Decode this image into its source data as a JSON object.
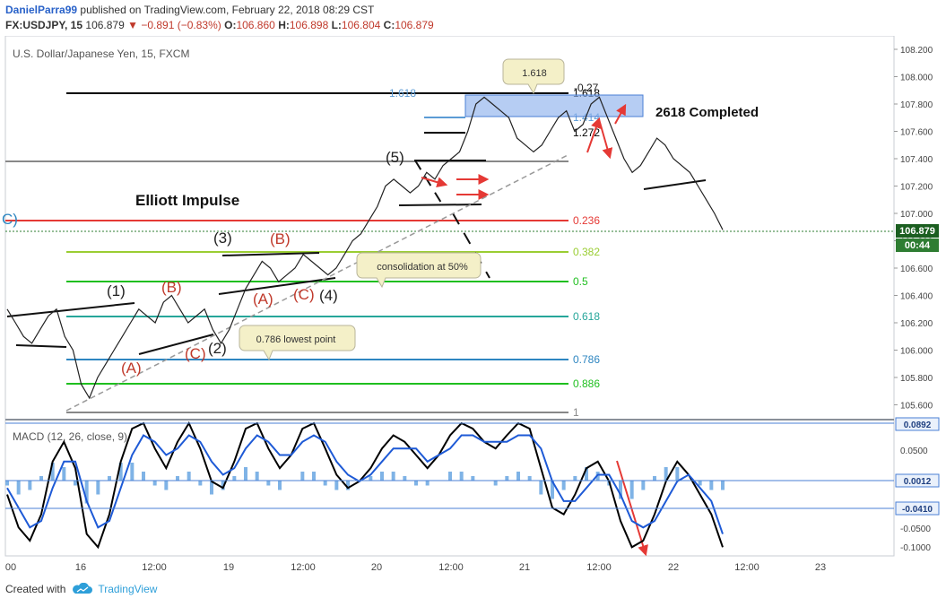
{
  "header": {
    "publisher": "DanielParra99",
    "published_text": "published on TradingView.com, February 22, 2018 08:29 CST",
    "symbol_line": {
      "symbol": "FX:USDJPY, 15",
      "last": "106.879",
      "change": "−0.891 (−0.83%)",
      "o_label": "O:",
      "o": "106.860",
      "h_label": "H:",
      "h": "106.898",
      "l_label": "L:",
      "l": "106.804",
      "c_label": "C:",
      "c": "106.879"
    }
  },
  "chart_data": [
    {
      "type": "line",
      "title": "U.S. Dollar/Japanese Yen, 15, FXCM",
      "price_axis_ticks": [
        "108.200",
        "108.000",
        "107.800",
        "107.600",
        "107.400",
        "107.200",
        "107.000",
        "106.800",
        "106.600",
        "106.400",
        "106.200",
        "106.000",
        "105.800",
        "105.600"
      ],
      "x_tick_labels": [
        "00",
        "16",
        "12:00",
        "19",
        "12:00",
        "20",
        "12:00",
        "21",
        "12:00",
        "22",
        "12:00",
        "23"
      ],
      "last_price_label": "106.879",
      "countdown_label": "00:44",
      "series": [
        {
          "name": "",
          "values": [
            106.3,
            106.2,
            106.1,
            106.05,
            106.15,
            106.25,
            106.3,
            106.1,
            106.0,
            105.75,
            105.65,
            105.8,
            105.9,
            106.0,
            106.1,
            106.2,
            106.3,
            106.25,
            106.2,
            106.35,
            106.4,
            106.3,
            106.2,
            106.25,
            106.3,
            106.15,
            106.05,
            106.15,
            106.3,
            106.45,
            106.55,
            106.65,
            106.6,
            106.5,
            106.55,
            106.6,
            106.7,
            106.65,
            106.6,
            106.55,
            106.6,
            106.7,
            106.8,
            106.85,
            106.95,
            107.05,
            107.2,
            107.25,
            107.2,
            107.15,
            107.2,
            107.3,
            107.25,
            107.35,
            107.4,
            107.45,
            107.6,
            107.8,
            107.85,
            107.8,
            107.75,
            107.7,
            107.55,
            107.5,
            107.45,
            107.5,
            107.6,
            107.7,
            107.75,
            107.6,
            107.65,
            107.8,
            107.85,
            107.7,
            107.55,
            107.4,
            107.3,
            107.35,
            107.45,
            107.55,
            107.5,
            107.4,
            107.35,
            107.3,
            107.2,
            107.1,
            107.0,
            106.88
          ]
        }
      ],
      "fib_levels": [
        {
          "label": "1.618",
          "color": "#000000"
        },
        {
          "label": "1.414",
          "color": "#5b9bd5"
        },
        {
          "label": "1.272",
          "color": "#000000"
        },
        {
          "label": "0.236",
          "color": "#e53935"
        },
        {
          "label": "0.382",
          "color": "#9acd32"
        },
        {
          "label": "0.5",
          "color": "#1fbf1f"
        },
        {
          "label": "0.618",
          "color": "#26a69a"
        },
        {
          "label": "0.786",
          "color": "#2e86c1"
        },
        {
          "label": "0.886",
          "color": "#1fbf1f"
        },
        {
          "label": "1",
          "color": "#888888"
        },
        {
          "label": "0",
          "color": "#888888"
        },
        {
          "label": "1.618",
          "color": "#5b9bd5"
        }
      ],
      "annotations": {
        "elliott": "Elliott Impulse",
        "completed": "2618 Completed",
        "neg027": "-0.27",
        "callout_1618": "1.618",
        "callout_consolidation": "consolidation at 50%",
        "callout_786": "0.786 lowest point",
        "w1": "(1)",
        "w2": "(2)",
        "w3": "(3)",
        "w4": "(4)",
        "w5": "(5)",
        "ca1": "(A)",
        "cb1": "(B)",
        "cc1": "(C)",
        "ca2": "(A)",
        "cb2": "(B)",
        "cc2": "(C)",
        "c_edge": "C)"
      }
    },
    {
      "type": "line",
      "title": "MACD (12, 26, close, 9)",
      "axis_ticks": [
        "0.0500",
        "-0.0500",
        "-0.1000"
      ],
      "highlight_labels": [
        "0.0892",
        "0.0012",
        "-0.0410"
      ],
      "series": [
        {
          "name": "",
          "values": [
            -0.02,
            -0.07,
            -0.09,
            -0.05,
            0.03,
            0.06,
            0.02,
            -0.08,
            -0.1,
            -0.05,
            0.03,
            0.08,
            0.09,
            0.05,
            0.02,
            0.06,
            0.09,
            0.05,
            0.0,
            -0.01,
            0.03,
            0.08,
            0.09,
            0.05,
            0.02,
            0.04,
            0.08,
            0.09,
            0.05,
            0.01,
            -0.01,
            0.0,
            0.02,
            0.05,
            0.07,
            0.06,
            0.04,
            0.02,
            0.04,
            0.07,
            0.09,
            0.08,
            0.06,
            0.05,
            0.07,
            0.09,
            0.08,
            0.02,
            -0.04,
            -0.05,
            -0.02,
            0.02,
            0.03,
            0.0,
            -0.06,
            -0.1,
            -0.09,
            -0.05,
            0.0,
            0.03,
            0.01,
            -0.02,
            -0.05,
            -0.1
          ]
        },
        {
          "name": "",
          "values": [
            -0.01,
            -0.04,
            -0.07,
            -0.06,
            -0.01,
            0.03,
            0.03,
            -0.03,
            -0.07,
            -0.06,
            -0.01,
            0.04,
            0.07,
            0.06,
            0.04,
            0.05,
            0.07,
            0.06,
            0.03,
            0.01,
            0.02,
            0.05,
            0.07,
            0.06,
            0.04,
            0.04,
            0.06,
            0.07,
            0.06,
            0.03,
            0.01,
            0.0,
            0.01,
            0.03,
            0.05,
            0.05,
            0.05,
            0.03,
            0.04,
            0.05,
            0.07,
            0.07,
            0.06,
            0.06,
            0.06,
            0.07,
            0.07,
            0.05,
            0.0,
            -0.03,
            -0.03,
            -0.01,
            0.01,
            0.01,
            -0.02,
            -0.06,
            -0.07,
            -0.06,
            -0.03,
            0.0,
            0.01,
            -0.01,
            -0.03,
            -0.08
          ]
        }
      ]
    }
  ],
  "footer": {
    "created_with": "Created with",
    "brand": "TradingView"
  }
}
